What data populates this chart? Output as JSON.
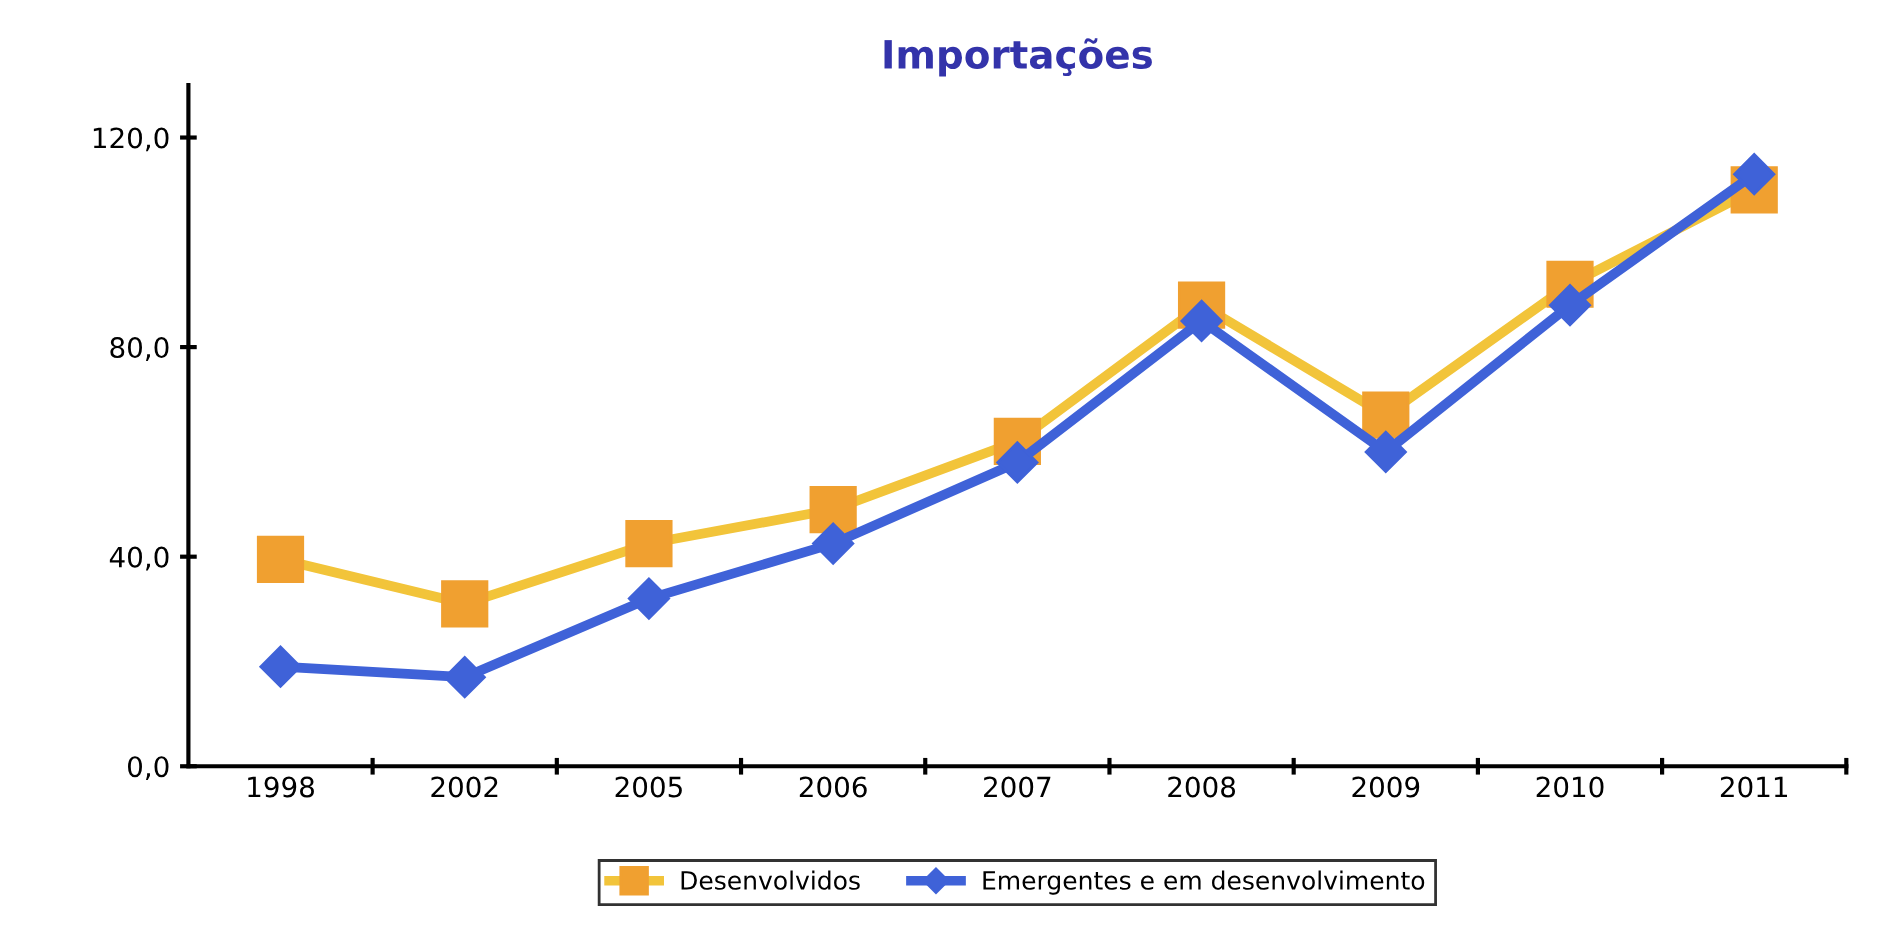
{
  "chart_data": {
    "type": "line",
    "title": "Importações",
    "categories": [
      "1998",
      "2002",
      "2005",
      "2006",
      "2007",
      "2008",
      "2009",
      "2010",
      "2011"
    ],
    "series": [
      {
        "name": "Desenvolvidos",
        "color": "#f2c43a",
        "marker": "square",
        "values": [
          39.5,
          31,
          42.5,
          49,
          62,
          88,
          67,
          92,
          110
        ]
      },
      {
        "name": "Emergentes e em desenvolvimento",
        "color": "#3f62d8",
        "marker": "diamond",
        "values": [
          19,
          17,
          32,
          42.5,
          58,
          85,
          60,
          88,
          113
        ]
      }
    ],
    "ylim": [
      0,
      130
    ],
    "yticks": [
      {
        "value": 0,
        "label": "0,0"
      },
      {
        "value": 40,
        "label": "40,0"
      },
      {
        "value": 80,
        "label": "80,0"
      },
      {
        "value": 120,
        "label": "120,0"
      }
    ],
    "grid": false,
    "legend": "bottom",
    "line_style": "solid"
  }
}
